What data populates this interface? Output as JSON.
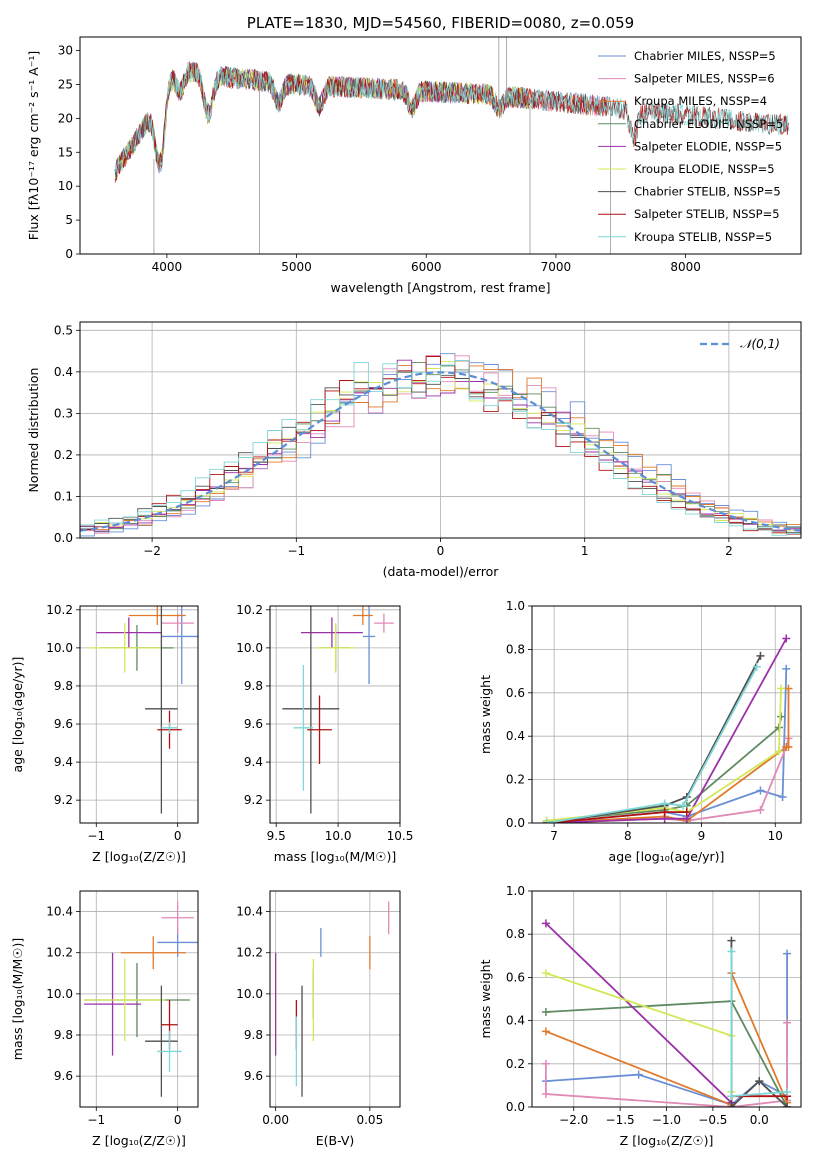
{
  "chart_data": [
    {
      "type": "line",
      "title": "PLATE=1830, MJD=54560, FIBERID=0080, z=0.059",
      "xlabel": "wavelength [Angstrom, rest frame]",
      "ylabel": "Flux [fλ10⁻¹⁷ erg cm⁻² s⁻¹ A⁻¹]",
      "xlim": [
        3330,
        8890
      ],
      "ylim": [
        0,
        32
      ],
      "xticks": [
        4000,
        5000,
        6000,
        7000,
        8000
      ],
      "yticks": [
        0,
        5,
        10,
        15,
        20,
        25,
        30
      ],
      "legend_position": "top-right",
      "series": [
        {
          "name": "Chabrier MILES, NSSP=5",
          "color": "#6a8fd6",
          "start": 3600,
          "end": 7400
        },
        {
          "name": "Salpeter MILES, NSSP=6",
          "color": "#e08ab8",
          "start": 3600,
          "end": 7400
        },
        {
          "name": "Kroupa MILES, NSSP=4",
          "color": "#e07a2a",
          "start": 3600,
          "end": 7400
        },
        {
          "name": "Chabrier ELODIE, NSSP=5",
          "color": "#5e8b62",
          "start": 3600,
          "end": 6800
        },
        {
          "name": "Salpeter ELODIE, NSSP=5",
          "color": "#9b30a8",
          "start": 3600,
          "end": 6800
        },
        {
          "name": "Kroupa ELODIE, NSSP=5",
          "color": "#d4e857",
          "start": 3600,
          "end": 6800
        },
        {
          "name": "Chabrier STELIB, NSSP=5",
          "color": "#505050",
          "start": 3600,
          "end": 8800
        },
        {
          "name": "Salpeter STELIB, NSSP=5",
          "color": "#b01010",
          "start": 3600,
          "end": 8800
        },
        {
          "name": "Kroupa STELIB, NSSP=5",
          "color": "#7fd6d6",
          "start": 3600,
          "end": 8800
        }
      ],
      "continuum": {
        "x": [
          3600,
          3700,
          3800,
          3900,
          4000,
          4100,
          4200,
          4500,
          5000,
          5500,
          6000,
          6500,
          7000,
          7500,
          8000,
          8500,
          8800
        ],
        "y": [
          12,
          15,
          18,
          21,
          26,
          27,
          27,
          26,
          25,
          24.5,
          24,
          23.5,
          22.5,
          21.5,
          20.5,
          19.5,
          19
        ]
      }
    },
    {
      "type": "bar",
      "xlabel": "(data-model)/error",
      "ylabel": "Normed distribution",
      "xlim": [
        -2.5,
        2.5
      ],
      "ylim": [
        0,
        0.52
      ],
      "xticks": [
        -2,
        -1,
        0,
        1,
        2
      ],
      "yticks": [
        0.0,
        0.1,
        0.2,
        0.3,
        0.4,
        0.5
      ],
      "legend_position": "top-right",
      "reference_curve": {
        "name": "𝒩(0,1)",
        "color": "#5b8fd6"
      },
      "bins": {
        "start": -2.5,
        "width": 0.1,
        "count": 50
      },
      "histogram_colors": [
        "#6a8fd6",
        "#e08ab8",
        "#e07a2a",
        "#5e8b62",
        "#9b30a8",
        "#d4e857",
        "#505050",
        "#b01010",
        "#7fd6d6"
      ]
    },
    {
      "type": "scatter",
      "xlabel": "Z [log₁₀(Z/Z☉)]",
      "ylabel": "age  [log₁₀(age/yr)]",
      "xlim": [
        -1.2,
        0.25
      ],
      "ylim": [
        9.08,
        10.22
      ],
      "xticks": [
        -1,
        0
      ],
      "yticks": [
        9.2,
        9.4,
        9.6,
        9.8,
        10.0,
        10.2
      ],
      "points": [
        {
          "x": 0.05,
          "y": 10.06,
          "xerr": 0.25,
          "yerr": 0.25,
          "color": "#6a8fd6"
        },
        {
          "x": 0.0,
          "y": 10.13,
          "xerr": 0.2,
          "yerr": 0.05,
          "color": "#e08ab8"
        },
        {
          "x": -0.25,
          "y": 10.17,
          "xerr": 0.35,
          "yerr": 0.05,
          "color": "#e07a2a"
        },
        {
          "x": -0.5,
          "y": 10.0,
          "xerr": 0.45,
          "yerr": 0.12,
          "color": "#5e8b62"
        },
        {
          "x": -0.6,
          "y": 10.08,
          "xerr": 0.4,
          "yerr": 0.08,
          "color": "#9b30a8"
        },
        {
          "x": -0.65,
          "y": 10.0,
          "xerr": 0.45,
          "yerr": 0.13,
          "color": "#d4e857"
        },
        {
          "x": -0.2,
          "y": 9.68,
          "xerr": 0.2,
          "yerr": 0.55,
          "color": "#505050"
        },
        {
          "x": -0.1,
          "y": 9.57,
          "xerr": 0.15,
          "yerr": 0.1,
          "color": "#b01010"
        },
        {
          "x": -0.1,
          "y": 9.58,
          "xerr": 0.1,
          "yerr": 0.03,
          "color": "#7fd6d6"
        }
      ]
    },
    {
      "type": "scatter",
      "xlabel": "mass [log₁₀(M/M☉)]",
      "ylabel": "",
      "xlim": [
        9.45,
        10.5
      ],
      "ylim": [
        9.08,
        10.22
      ],
      "xticks": [
        9.5,
        10.0,
        10.5
      ],
      "yticks": [
        9.2,
        9.4,
        9.6,
        9.8,
        10.0,
        10.2
      ],
      "points": [
        {
          "x": 10.25,
          "y": 10.06,
          "xerr": 0.05,
          "yerr": 0.25,
          "color": "#6a8fd6"
        },
        {
          "x": 10.37,
          "y": 10.13,
          "xerr": 0.08,
          "yerr": 0.05,
          "color": "#e08ab8"
        },
        {
          "x": 10.2,
          "y": 10.17,
          "xerr": 0.08,
          "yerr": 0.05,
          "color": "#e07a2a"
        },
        {
          "x": 9.98,
          "y": 10.0,
          "xerr": 0.12,
          "yerr": 0.12,
          "color": "#5e8b62"
        },
        {
          "x": 9.95,
          "y": 10.08,
          "xerr": 0.25,
          "yerr": 0.08,
          "color": "#9b30a8"
        },
        {
          "x": 9.98,
          "y": 10.0,
          "xerr": 0.15,
          "yerr": 0.13,
          "color": "#d4e857"
        },
        {
          "x": 9.78,
          "y": 9.68,
          "xerr": 0.23,
          "yerr": 0.55,
          "color": "#505050"
        },
        {
          "x": 9.85,
          "y": 9.57,
          "xerr": 0.1,
          "yerr": 0.18,
          "color": "#b01010"
        },
        {
          "x": 9.72,
          "y": 9.58,
          "xerr": 0.08,
          "yerr": 0.33,
          "color": "#7fd6d6"
        }
      ]
    },
    {
      "type": "line",
      "xlabel": "age  [log₁₀(age/yr)]",
      "ylabel": "mass weight",
      "xlim": [
        6.7,
        10.35
      ],
      "ylim": [
        0,
        1.0
      ],
      "xticks": [
        7,
        8,
        9,
        10
      ],
      "yticks": [
        0.0,
        0.2,
        0.4,
        0.6,
        0.8,
        1.0
      ],
      "series": [
        {
          "color": "#6a8fd6",
          "x": [
            6.9,
            8.5,
            8.8,
            9.8,
            10.1,
            10.15
          ],
          "y": [
            0.0,
            0.05,
            0.03,
            0.15,
            0.12,
            0.71
          ]
        },
        {
          "color": "#e08ab8",
          "x": [
            6.9,
            8.5,
            8.8,
            9.8,
            10.15,
            10.18
          ],
          "y": [
            0.0,
            0.02,
            0.01,
            0.06,
            0.35,
            0.39
          ]
        },
        {
          "color": "#e07a2a",
          "x": [
            6.9,
            8.5,
            8.8,
            10.15,
            10.18,
            10.18
          ],
          "y": [
            0.0,
            0.03,
            0.01,
            0.35,
            0.35,
            0.62
          ]
        },
        {
          "color": "#5e8b62",
          "x": [
            6.9,
            8.5,
            8.8,
            10.05,
            10.08
          ],
          "y": [
            0.01,
            0.06,
            0.08,
            0.44,
            0.49
          ]
        },
        {
          "color": "#9b30a8",
          "x": [
            6.9,
            8.5,
            8.8,
            10.15
          ],
          "y": [
            0.0,
            0.02,
            0.02,
            0.85
          ]
        },
        {
          "color": "#d4e857",
          "x": [
            6.9,
            8.5,
            8.8,
            10.05,
            10.08
          ],
          "y": [
            0.01,
            0.07,
            0.05,
            0.33,
            0.62
          ]
        },
        {
          "color": "#505050",
          "x": [
            6.9,
            8.5,
            8.8,
            9.8
          ],
          "y": [
            0.0,
            0.08,
            0.12,
            0.77
          ]
        },
        {
          "color": "#b01010",
          "x": [
            6.9,
            8.5,
            8.8
          ],
          "y": [
            0.0,
            0.05,
            0.05
          ]
        },
        {
          "color": "#7fd6d6",
          "x": [
            6.9,
            8.5,
            8.75,
            9.75
          ],
          "y": [
            0.0,
            0.09,
            0.08,
            0.72
          ]
        }
      ]
    },
    {
      "type": "scatter",
      "xlabel": "Z [log₁₀(Z/Z☉)]",
      "ylabel": "mass [log₁₀(M/M☉)]",
      "xlim": [
        -1.2,
        0.25
      ],
      "ylim": [
        9.45,
        10.5
      ],
      "xticks": [
        -1,
        0
      ],
      "yticks": [
        9.6,
        9.8,
        10.0,
        10.2,
        10.4
      ],
      "points": [
        {
          "x": 0.0,
          "y": 10.25,
          "xerr": 0.25,
          "yerr": 0.07,
          "color": "#6a8fd6"
        },
        {
          "x": 0.0,
          "y": 10.37,
          "xerr": 0.2,
          "yerr": 0.08,
          "color": "#e08ab8"
        },
        {
          "x": -0.3,
          "y": 10.2,
          "xerr": 0.4,
          "yerr": 0.08,
          "color": "#e07a2a"
        },
        {
          "x": -0.5,
          "y": 9.97,
          "xerr": 0.65,
          "yerr": 0.18,
          "color": "#5e8b62"
        },
        {
          "x": -0.8,
          "y": 9.95,
          "xerr": 0.35,
          "yerr": 0.25,
          "color": "#9b30a8"
        },
        {
          "x": -0.65,
          "y": 9.97,
          "xerr": 0.5,
          "yerr": 0.2,
          "color": "#d4e857"
        },
        {
          "x": -0.2,
          "y": 9.77,
          "xerr": 0.2,
          "yerr": 0.27,
          "color": "#505050"
        },
        {
          "x": -0.1,
          "y": 9.85,
          "xerr": 0.1,
          "yerr": 0.12,
          "color": "#b01010"
        },
        {
          "x": -0.1,
          "y": 9.72,
          "xerr": 0.15,
          "yerr": 0.1,
          "color": "#7fd6d6"
        }
      ]
    },
    {
      "type": "scatter",
      "xlabel": "E(B-V)",
      "ylabel": "",
      "xlim": [
        -0.003,
        0.066
      ],
      "ylim": [
        9.45,
        10.5
      ],
      "xticks": [
        0.0,
        0.05
      ],
      "yticks": [
        9.6,
        9.8,
        10.0,
        10.2,
        10.4
      ],
      "points": [
        {
          "x": 0.024,
          "y": 10.25,
          "yerr": 0.07,
          "color": "#6a8fd6"
        },
        {
          "x": 0.06,
          "y": 10.37,
          "yerr": 0.08,
          "color": "#e08ab8"
        },
        {
          "x": 0.05,
          "y": 10.2,
          "yerr": 0.08,
          "color": "#e07a2a"
        },
        {
          "x": 0.02,
          "y": 10.0,
          "yerr": 0.12,
          "color": "#5e8b62"
        },
        {
          "x": 0.0,
          "y": 9.95,
          "yerr": 0.25,
          "color": "#9b30a8"
        },
        {
          "x": 0.02,
          "y": 9.97,
          "yerr": 0.2,
          "color": "#d4e857"
        },
        {
          "x": 0.014,
          "y": 9.77,
          "yerr": 0.27,
          "color": "#505050"
        },
        {
          "x": 0.011,
          "y": 9.85,
          "yerr": 0.12,
          "color": "#b01010"
        },
        {
          "x": 0.011,
          "y": 9.72,
          "yerr": 0.17,
          "color": "#7fd6d6"
        }
      ]
    },
    {
      "type": "line",
      "xlabel": "Z [log₁₀(Z/Z☉)]",
      "ylabel": "mass weight",
      "xlim": [
        -2.45,
        0.45
      ],
      "ylim": [
        0,
        1.0
      ],
      "xticks": [
        -2.0,
        -1.5,
        -1.0,
        -0.5,
        0.0
      ],
      "yticks": [
        0.0,
        0.2,
        0.4,
        0.6,
        0.8,
        1.0
      ],
      "series": [
        {
          "color": "#6a8fd6",
          "x": [
            -2.3,
            -1.3,
            -0.3,
            0.0,
            0.3,
            0.3
          ],
          "y": [
            0.12,
            0.15,
            0.01,
            0.12,
            0.05,
            0.71
          ]
        },
        {
          "color": "#e08ab8",
          "x": [
            -2.3,
            -2.3,
            -0.3,
            0.3,
            0.3
          ],
          "y": [
            0.2,
            0.06,
            0.0,
            0.03,
            0.39
          ]
        },
        {
          "color": "#e07a2a",
          "x": [
            -2.3,
            -0.3,
            -0.3,
            0.3
          ],
          "y": [
            0.35,
            0.01,
            0.62,
            0.02
          ]
        },
        {
          "color": "#5e8b62",
          "x": [
            -2.3,
            -0.3,
            0.3
          ],
          "y": [
            0.44,
            0.49,
            0.0
          ]
        },
        {
          "color": "#9b30a8",
          "x": [
            -2.3,
            -0.3
          ],
          "y": [
            0.85,
            0.02
          ]
        },
        {
          "color": "#d4e857",
          "x": [
            -2.3,
            -0.3,
            -0.3
          ],
          "y": [
            0.62,
            0.33,
            0.07
          ]
        },
        {
          "color": "#505050",
          "x": [
            -0.3,
            -0.3,
            0.0,
            0.3
          ],
          "y": [
            0.77,
            0.0,
            0.12,
            0.0
          ]
        },
        {
          "color": "#b01010",
          "x": [
            -0.3,
            0.3
          ],
          "y": [
            0.05,
            0.05
          ]
        },
        {
          "color": "#7fd6d6",
          "x": [
            -0.3,
            -0.3,
            0.3
          ],
          "y": [
            0.72,
            0.05,
            0.07
          ]
        }
      ]
    }
  ]
}
